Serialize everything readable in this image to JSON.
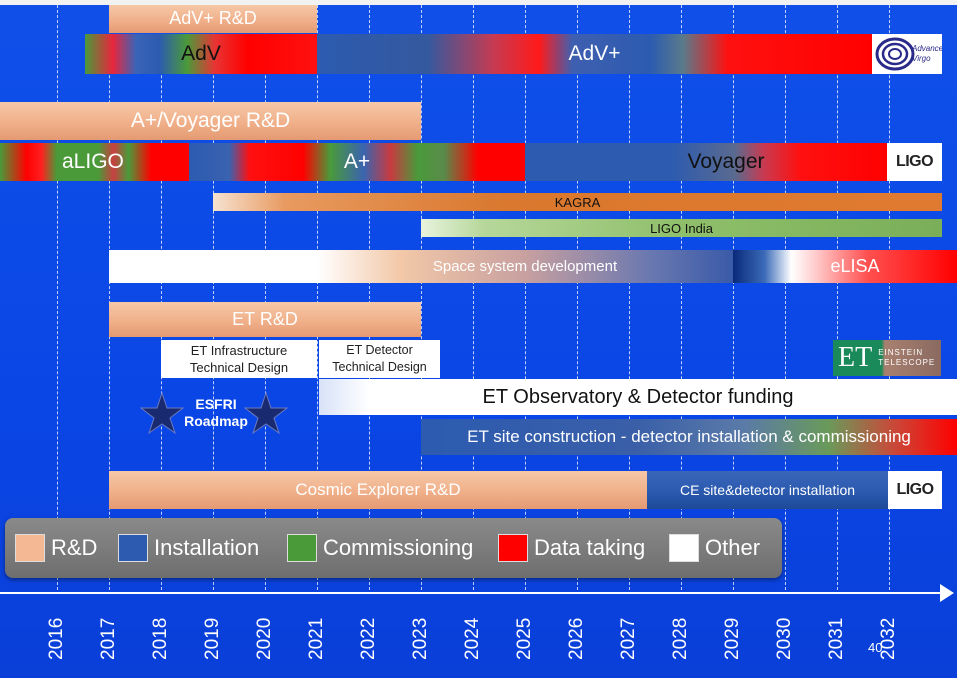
{
  "rows": {
    "adv_rd": "AdV+ R&D",
    "adv": "AdV",
    "adv_plus": "AdV+",
    "aplus_rd": "A+/Voyager R&D",
    "aligo": "aLIGO",
    "aplus": "A+",
    "voyager": "Voyager",
    "kagra": "KAGRA",
    "ligo_india": "LIGO India",
    "space_dev": "Space system development",
    "elisa": "eLISA",
    "et_rd": "ET R&D",
    "et_infra_1": "ET Infrastructure",
    "et_infra_2": "Technical Design",
    "et_det_1": "ET Detector",
    "et_det_2": "Technical Design",
    "esfri_1": "ESFRI",
    "esfri_2": "Roadmap",
    "et_funding": "ET Observatory & Detector funding",
    "et_site": "ET site construction - detector installation & commissioning",
    "ce_rd": "Cosmic Explorer R&D",
    "ce_site": "CE site&detector installation"
  },
  "logos": {
    "advanced_virgo_1": "Advanced",
    "advanced_virgo_2": "Virgo",
    "ligo": "LIGO",
    "et_mark": "ET",
    "einstein_1": "EINSTEIN",
    "einstein_2": "TELESCOPE"
  },
  "legend": [
    {
      "label": "R&D",
      "color": "#f4b994"
    },
    {
      "label": "Installation",
      "color": "#2c5bb0"
    },
    {
      "label": "Commissioning",
      "color": "#4a9a3a"
    },
    {
      "label": "Data taking",
      "color": "#ff0000"
    },
    {
      "label": "Other",
      "color": "#ffffff"
    }
  ],
  "years": [
    "2016",
    "2017",
    "2018",
    "2019",
    "2020",
    "2021",
    "2022",
    "2023",
    "2024",
    "2025",
    "2026",
    "2027",
    "2028",
    "2029",
    "2030",
    "2031",
    "2032"
  ],
  "page_number": "40"
}
